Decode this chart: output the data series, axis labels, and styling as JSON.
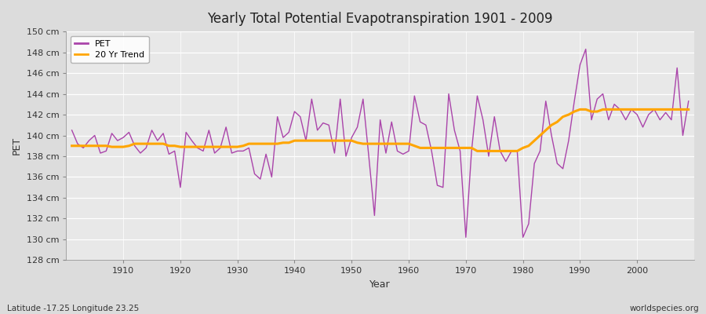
{
  "title": "Yearly Total Potential Evapotranspiration 1901 - 2009",
  "xlabel": "Year",
  "ylabel": "PET",
  "footnote_left": "Latitude -17.25 Longitude 23.25",
  "footnote_right": "worldspecies.org",
  "ylim": [
    128,
    150
  ],
  "yticks": [
    128,
    130,
    132,
    134,
    136,
    138,
    140,
    142,
    144,
    146,
    148,
    150
  ],
  "pet_color": "#AA44AA",
  "trend_color": "#FFA500",
  "fig_bg_color": "#DCDCDC",
  "plot_bg_color": "#E8E8E8",
  "grid_color": "#FFFFFF",
  "years": [
    1901,
    1902,
    1903,
    1904,
    1905,
    1906,
    1907,
    1908,
    1909,
    1910,
    1911,
    1912,
    1913,
    1914,
    1915,
    1916,
    1917,
    1918,
    1919,
    1920,
    1921,
    1922,
    1923,
    1924,
    1925,
    1926,
    1927,
    1928,
    1929,
    1930,
    1931,
    1932,
    1933,
    1934,
    1935,
    1936,
    1937,
    1938,
    1939,
    1940,
    1941,
    1942,
    1943,
    1944,
    1945,
    1946,
    1947,
    1948,
    1949,
    1950,
    1951,
    1952,
    1953,
    1954,
    1955,
    1956,
    1957,
    1958,
    1959,
    1960,
    1961,
    1962,
    1963,
    1964,
    1965,
    1966,
    1967,
    1968,
    1969,
    1970,
    1971,
    1972,
    1973,
    1974,
    1975,
    1976,
    1977,
    1978,
    1979,
    1980,
    1981,
    1982,
    1983,
    1984,
    1985,
    1986,
    1987,
    1988,
    1989,
    1990,
    1991,
    1992,
    1993,
    1994,
    1995,
    1996,
    1997,
    1998,
    1999,
    2000,
    2001,
    2002,
    2003,
    2004,
    2005,
    2006,
    2007,
    2008,
    2009
  ],
  "pet_values": [
    140.5,
    139.2,
    138.8,
    139.5,
    140.0,
    138.3,
    138.5,
    140.2,
    139.5,
    139.8,
    140.3,
    139.0,
    138.3,
    138.8,
    140.5,
    139.5,
    140.2,
    138.2,
    138.5,
    135.0,
    140.3,
    139.5,
    138.8,
    138.5,
    140.5,
    138.3,
    138.8,
    140.8,
    138.3,
    138.5,
    138.5,
    138.8,
    136.3,
    135.8,
    138.2,
    136.0,
    141.8,
    139.8,
    140.3,
    142.3,
    141.8,
    139.5,
    143.5,
    140.5,
    141.2,
    141.0,
    138.3,
    143.5,
    138.0,
    139.8,
    140.8,
    143.5,
    138.0,
    132.3,
    141.5,
    138.3,
    141.3,
    138.5,
    138.2,
    138.5,
    143.8,
    141.3,
    141.0,
    138.5,
    135.2,
    135.0,
    144.0,
    140.5,
    138.5,
    130.2,
    138.5,
    143.8,
    141.5,
    138.0,
    141.8,
    138.5,
    137.5,
    138.5,
    138.5,
    130.2,
    131.5,
    137.3,
    138.5,
    143.3,
    140.0,
    137.3,
    136.8,
    139.5,
    143.3,
    146.8,
    148.3,
    141.5,
    143.5,
    144.0,
    141.5,
    143.0,
    142.5,
    141.5,
    142.5,
    142.0,
    140.8,
    142.0,
    142.5,
    141.5,
    142.2,
    141.5,
    146.5,
    140.0,
    143.3
  ],
  "trend_values": [
    139.0,
    139.0,
    139.0,
    139.0,
    139.0,
    139.0,
    139.0,
    138.9,
    138.9,
    138.9,
    139.0,
    139.2,
    139.2,
    139.2,
    139.2,
    139.2,
    139.2,
    139.0,
    139.0,
    138.9,
    138.9,
    138.9,
    138.9,
    138.9,
    138.9,
    138.9,
    138.9,
    138.9,
    138.9,
    138.9,
    139.0,
    139.2,
    139.2,
    139.2,
    139.2,
    139.2,
    139.2,
    139.3,
    139.3,
    139.5,
    139.5,
    139.5,
    139.5,
    139.5,
    139.5,
    139.5,
    139.5,
    139.5,
    139.5,
    139.5,
    139.3,
    139.2,
    139.2,
    139.2,
    139.2,
    139.2,
    139.2,
    139.2,
    139.2,
    139.2,
    139.0,
    138.8,
    138.8,
    138.8,
    138.8,
    138.8,
    138.8,
    138.8,
    138.8,
    138.8,
    138.8,
    138.5,
    138.5,
    138.5,
    138.5,
    138.5,
    138.5,
    138.5,
    138.5,
    138.8,
    139.0,
    139.5,
    140.0,
    140.5,
    141.0,
    141.3,
    141.8,
    142.0,
    142.3,
    142.5,
    142.5,
    142.3,
    142.3,
    142.5,
    142.5,
    142.5,
    142.5,
    142.5,
    142.5,
    142.5,
    142.5,
    142.5,
    142.5,
    142.5,
    142.5,
    142.5,
    142.5,
    142.5,
    142.5
  ]
}
